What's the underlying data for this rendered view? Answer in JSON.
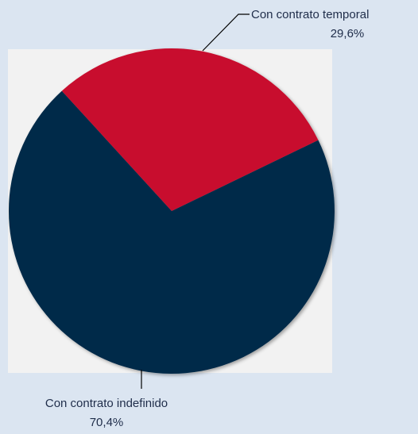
{
  "chart_data": {
    "type": "pie",
    "categories": [
      "Con contrato temporal",
      "Con contrato indefinido"
    ],
    "values": [
      29.6,
      70.4
    ],
    "value_labels": [
      "29,6%",
      "70,4%"
    ],
    "colors": [
      "#c8102e",
      "#002b49"
    ]
  }
}
